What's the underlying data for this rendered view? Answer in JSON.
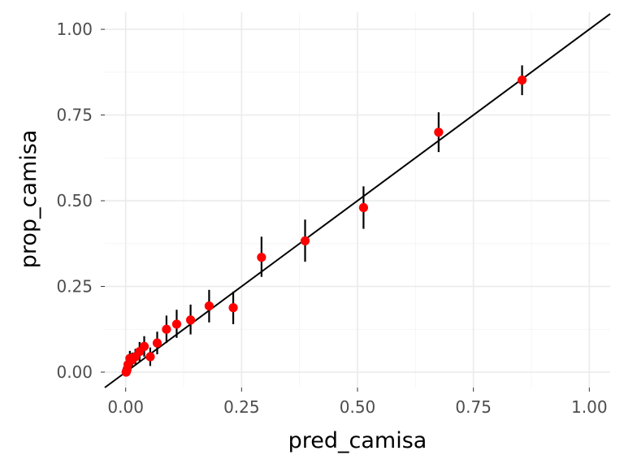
{
  "chart_data": {
    "type": "scatter",
    "xlabel": "pred_camisa",
    "ylabel": "prop_camisa",
    "xlim": [
      -0.045,
      1.045
    ],
    "ylim": [
      -0.045,
      1.05
    ],
    "x_ticks": [
      0,
      0.25,
      0.5,
      0.75,
      1
    ],
    "x_tick_labels": [
      "0.00",
      "0.25",
      "0.50",
      "0.75",
      "1.00"
    ],
    "y_ticks": [
      0,
      0.25,
      0.5,
      0.75,
      1
    ],
    "y_tick_labels": [
      "0.00",
      "0.25",
      "0.50",
      "0.75",
      "1.00"
    ],
    "grid": true,
    "legend": "none",
    "reference_line": {
      "intercept": 0,
      "slope": 1,
      "color": "#000000"
    },
    "point_color": "#ff0000",
    "errorbar_color": "#000000",
    "points": [
      {
        "x": 0.001,
        "y": 0.0,
        "ymin": 0.0,
        "ymax": 0.005
      },
      {
        "x": 0.002,
        "y": 0.003,
        "ymin": 0.0,
        "ymax": 0.01
      },
      {
        "x": 0.003,
        "y": 0.008,
        "ymin": 0.0,
        "ymax": 0.02
      },
      {
        "x": 0.005,
        "y": 0.022,
        "ymin": 0.005,
        "ymax": 0.04
      },
      {
        "x": 0.009,
        "y": 0.04,
        "ymin": 0.018,
        "ymax": 0.062
      },
      {
        "x": 0.014,
        "y": 0.036,
        "ymin": 0.015,
        "ymax": 0.057
      },
      {
        "x": 0.021,
        "y": 0.045,
        "ymin": 0.022,
        "ymax": 0.068
      },
      {
        "x": 0.03,
        "y": 0.06,
        "ymin": 0.032,
        "ymax": 0.088
      },
      {
        "x": 0.04,
        "y": 0.075,
        "ymin": 0.045,
        "ymax": 0.105
      },
      {
        "x": 0.053,
        "y": 0.045,
        "ymin": 0.018,
        "ymax": 0.072
      },
      {
        "x": 0.068,
        "y": 0.085,
        "ymin": 0.052,
        "ymax": 0.118
      },
      {
        "x": 0.088,
        "y": 0.125,
        "ymin": 0.085,
        "ymax": 0.165
      },
      {
        "x": 0.11,
        "y": 0.14,
        "ymin": 0.1,
        "ymax": 0.182
      },
      {
        "x": 0.14,
        "y": 0.152,
        "ymin": 0.11,
        "ymax": 0.197
      },
      {
        "x": 0.18,
        "y": 0.193,
        "ymin": 0.145,
        "ymax": 0.24
      },
      {
        "x": 0.232,
        "y": 0.188,
        "ymin": 0.14,
        "ymax": 0.235
      },
      {
        "x": 0.293,
        "y": 0.335,
        "ymin": 0.278,
        "ymax": 0.395
      },
      {
        "x": 0.387,
        "y": 0.383,
        "ymin": 0.322,
        "ymax": 0.445
      },
      {
        "x": 0.513,
        "y": 0.48,
        "ymin": 0.418,
        "ymax": 0.542
      },
      {
        "x": 0.675,
        "y": 0.7,
        "ymin": 0.642,
        "ymax": 0.758
      },
      {
        "x": 0.855,
        "y": 0.852,
        "ymin": 0.808,
        "ymax": 0.895
      }
    ]
  }
}
